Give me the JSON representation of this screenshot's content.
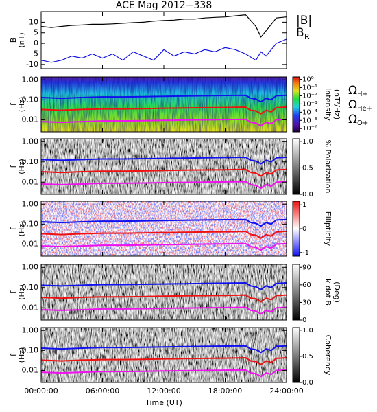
{
  "chart_data": [
    {
      "type": "line",
      "title": "ACE Mag 2012−338",
      "ylabel": [
        "B",
        "(nT)"
      ],
      "xlim": [
        0,
        24
      ],
      "ylim": [
        -12,
        15
      ],
      "yticks": [
        10,
        5,
        0,
        -5,
        -10
      ],
      "x": [
        0,
        1,
        2,
        3,
        4,
        5,
        6,
        7,
        8,
        9,
        10,
        11,
        12,
        13,
        14,
        15,
        16,
        17,
        18,
        19,
        20,
        21,
        21.5,
        22,
        23,
        24
      ],
      "series": [
        {
          "name": "|B|",
          "color": "#000000",
          "values": [
            8,
            7.5,
            8,
            8.5,
            8.7,
            9,
            9,
            9.2,
            9.5,
            9.8,
            10,
            10.5,
            10.8,
            11,
            11.5,
            11.5,
            12,
            12.3,
            12.5,
            13,
            13.5,
            8,
            3,
            6,
            12,
            12.5
          ]
        },
        {
          "name": "B",
          "subscript": "R",
          "color": "#1010e0",
          "values": [
            -8,
            -9,
            -8,
            -6,
            -7,
            -5,
            -7,
            -5,
            -8,
            -4,
            -6,
            -8,
            -3,
            -6,
            -4,
            -5,
            -3,
            -4,
            -2,
            -3,
            -5,
            -8,
            -4,
            -6,
            0,
            2
          ]
        }
      ]
    },
    {
      "type": "spectrogram",
      "ylabel": [
        "f",
        "(Hz)"
      ],
      "log_y": true,
      "xlim": [
        0,
        24
      ],
      "ylim": [
        0.0025,
        1.4
      ],
      "yticks": [
        {
          "value": 1,
          "label": "1.00"
        },
        {
          "value": 0.1,
          "label": "0.10"
        },
        {
          "value": 0.01,
          "label": "0.01"
        }
      ],
      "colormap": "rainbow",
      "cbar_label": [
        "Intensity",
        "(nT²/Hz)"
      ],
      "cbar_lim": [
        -6.4,
        0.3
      ],
      "cbar_ticks": [
        {
          "value": 0,
          "label": "10⁰"
        },
        {
          "value": -1,
          "label": "10⁻¹"
        },
        {
          "value": -2,
          "label": "10⁻²"
        },
        {
          "value": -3,
          "label": "10⁻³"
        },
        {
          "value": -4,
          "label": "10⁻⁴"
        },
        {
          "value": -5,
          "label": "10⁻⁵"
        },
        {
          "value": -6,
          "label": "10⁻⁶"
        }
      ],
      "x": [
        0,
        2,
        4,
        6,
        8,
        10,
        12,
        14,
        16,
        18,
        20,
        20.5,
        21,
        21.5,
        22,
        22.5,
        23,
        24
      ],
      "series": [
        {
          "name": "Ω",
          "subscript": "H+",
          "color": "#1010f0",
          "values": [
            0.13,
            0.12,
            0.13,
            0.14,
            0.14,
            0.145,
            0.15,
            0.155,
            0.16,
            0.165,
            0.17,
            0.12,
            0.11,
            0.08,
            0.12,
            0.1,
            0.16,
            0.17
          ]
        },
        {
          "name": "Ω",
          "subscript": "He+",
          "color": "#f01010",
          "values": [
            0.033,
            0.03,
            0.033,
            0.035,
            0.035,
            0.036,
            0.038,
            0.039,
            0.04,
            0.041,
            0.043,
            0.03,
            0.028,
            0.02,
            0.03,
            0.025,
            0.04,
            0.043
          ]
        },
        {
          "name": "Ω",
          "subscript": "O+",
          "color": "#f010f0",
          "values": [
            0.0081,
            0.0075,
            0.0081,
            0.0088,
            0.0088,
            0.0091,
            0.0094,
            0.0097,
            0.01,
            0.0103,
            0.0106,
            0.0075,
            0.0069,
            0.005,
            0.0075,
            0.0063,
            0.01,
            0.0106
          ]
        }
      ]
    },
    {
      "type": "spectrogram",
      "ylabel": [
        "f",
        "(Hz)"
      ],
      "log_y": true,
      "xlim": [
        0,
        24
      ],
      "ylim": [
        0.0025,
        1.4
      ],
      "yticks": [
        {
          "value": 1,
          "label": "1.00"
        },
        {
          "value": 0.1,
          "label": "0.10"
        },
        {
          "value": 0.01,
          "label": "0.01"
        }
      ],
      "colormap": "gray",
      "cbar_label": [
        "% Polarization"
      ],
      "cbar_lim": [
        0,
        1.05
      ],
      "cbar_ticks": [
        {
          "value": 1,
          "label": "1.0"
        },
        0.5,
        {
          "value": 0,
          "label": "0.0"
        }
      ]
    },
    {
      "type": "spectrogram",
      "ylabel": [
        "f",
        "(Hz)"
      ],
      "log_y": true,
      "xlim": [
        0,
        24
      ],
      "ylim": [
        0.0025,
        1.4
      ],
      "yticks": [
        {
          "value": 1,
          "label": "1.00"
        },
        {
          "value": 0.1,
          "label": "0.10"
        },
        {
          "value": 0.01,
          "label": "0.01"
        }
      ],
      "colormap": "bwr",
      "cbar_label": [
        "Ellipticity"
      ],
      "cbar_lim": [
        -1.15,
        1.15
      ],
      "cbar_ticks": [
        1,
        0,
        -1
      ]
    },
    {
      "type": "spectrogram",
      "ylabel": [
        "f",
        "(Hz)"
      ],
      "log_y": true,
      "xlim": [
        0,
        24
      ],
      "ylim": [
        0.0025,
        1.4
      ],
      "yticks": [
        {
          "value": 1,
          "label": "1.00"
        },
        {
          "value": 0.1,
          "label": "0.10"
        },
        {
          "value": 0.01,
          "label": "0.01"
        }
      ],
      "colormap": "gray",
      "cbar_label": [
        "k dot B",
        "(Deg)"
      ],
      "cbar_lim": [
        0,
        95
      ],
      "cbar_ticks": [
        90,
        60,
        30,
        0
      ]
    },
    {
      "type": "spectrogram",
      "ylabel": [
        "f",
        "(Hz)"
      ],
      "log_y": true,
      "xlim": [
        0,
        24
      ],
      "ylim": [
        0.0025,
        1.4
      ],
      "yticks": [
        {
          "value": 1,
          "label": "1.00"
        },
        {
          "value": 0.1,
          "label": "0.10"
        },
        {
          "value": 0.01,
          "label": "0.01"
        }
      ],
      "colormap": "gray",
      "cbar_label": [
        "Coherency"
      ],
      "cbar_lim": [
        0,
        1.05
      ],
      "cbar_ticks": [
        {
          "value": 1,
          "label": "1.0"
        },
        0.5,
        {
          "value": 0,
          "label": "0.0"
        }
      ],
      "xlabel": "Time (UT)",
      "xticks": [
        {
          "value": 0,
          "label": "00:00:00"
        },
        {
          "value": 6,
          "label": "06:00:00"
        },
        {
          "value": 12,
          "label": "12:00:00"
        },
        {
          "value": 18,
          "label": "18:00:00"
        },
        {
          "value": 24,
          "label": "24:00:00"
        }
      ]
    }
  ]
}
